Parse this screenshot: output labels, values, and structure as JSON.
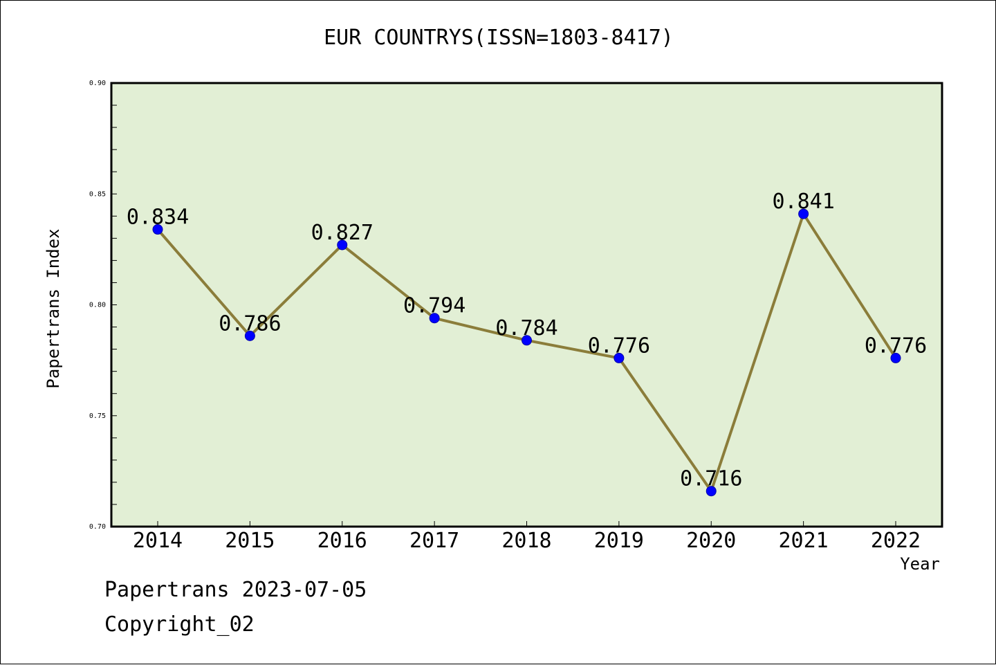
{
  "chart_data": {
    "type": "line",
    "title": "EUR COUNTRYS(ISSN=1803-8417)",
    "xlabel": "Year",
    "ylabel": "Papertrans Index",
    "categories": [
      "2014",
      "2015",
      "2016",
      "2017",
      "2018",
      "2019",
      "2020",
      "2021",
      "2022"
    ],
    "values": [
      0.834,
      0.786,
      0.827,
      0.794,
      0.784,
      0.776,
      0.716,
      0.841,
      0.776
    ],
    "data_labels": [
      "0.834",
      "0.786",
      "0.827",
      "0.794",
      "0.784",
      "0.776",
      "0.716",
      "0.841",
      "0.776"
    ],
    "ylim": [
      0.7,
      0.9
    ],
    "yticks": [
      "0.70",
      "0.75",
      "0.80",
      "0.85",
      "0.90"
    ],
    "grid": false,
    "colors": {
      "plot_background": "#e2efd5",
      "line": "#8b7d3a",
      "marker": "#0000ff"
    }
  },
  "footer": {
    "date_text": "Papertrans 2023-07-05",
    "copyright_text": "Copyright_02"
  }
}
